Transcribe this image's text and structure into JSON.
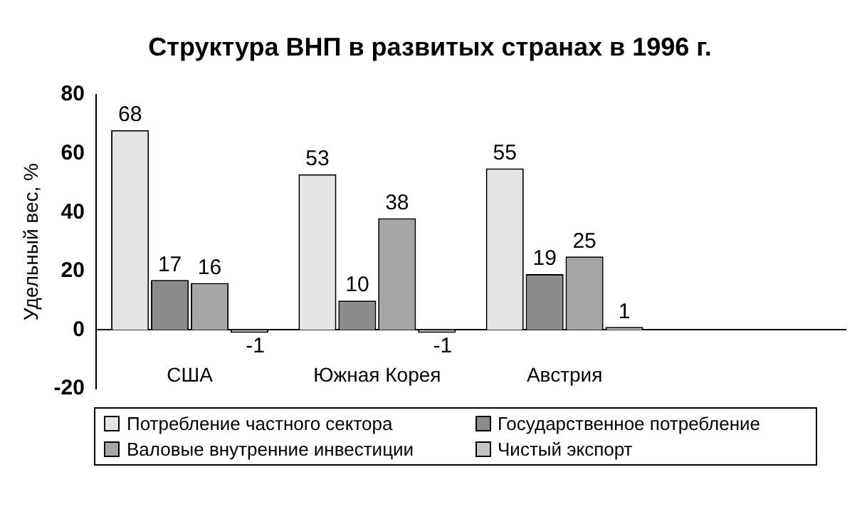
{
  "chart_data": {
    "type": "bar",
    "title": "Структура ВНП в развитых странах в 1996 г.",
    "ylabel": "Удельный вес, %",
    "categories": [
      "США",
      "Южная Корея",
      "Австрия",
      null
    ],
    "series": [
      {
        "name": "Потребление частного сектора",
        "color": "#e4e4e4",
        "values": [
          68,
          53,
          55,
          null
        ]
      },
      {
        "name": "Государственное потребление",
        "color": "#8c8c8c",
        "values": [
          17,
          10,
          19,
          null
        ]
      },
      {
        "name": "Валовые внутренние инвестиции",
        "color": "#a6a6a6",
        "values": [
          16,
          38,
          25,
          null
        ]
      },
      {
        "name": "Чистый экспорт",
        "color": "#c4c4c4",
        "values": [
          -1,
          -1,
          1,
          null
        ]
      }
    ],
    "ylim": [
      -20,
      80
    ],
    "yticks": [
      -20,
      0,
      20,
      40,
      60,
      80
    ],
    "grid": false,
    "legend": "bottom",
    "data_labels": true
  }
}
